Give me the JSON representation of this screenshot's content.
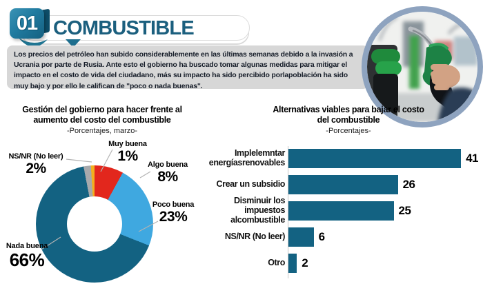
{
  "header": {
    "number": "01",
    "title": "COMBUSTIBLE"
  },
  "intro": {
    "text": "Los precios del petróleo han subido considerablemente en las últimas semanas debido a la invasión a Ucrania por parte de Rusia. Ante esto el gobierno ha buscado tomar algunas medidas para mitigar el impacto en el costo de vida del ciudadano, más su impacto ha sido percibido porlapoblación ha sido muy bajo y por ello le califican de \"poco o nada buenas\"."
  },
  "photo": {
    "description": "Mano sosteniendo boquilla verde de surtidor de combustible"
  },
  "colors": {
    "accent_teal": "#136282",
    "light_blue": "#3fa8e0",
    "red": "#e2271d",
    "yellow": "#f2b01e",
    "gray": "#a7a9ac",
    "title_blue": "#1b5f7e"
  },
  "chart_data": [
    {
      "type": "pie",
      "donut": true,
      "title": "Gestión del gobierno para hacer frente al aumento del costo del combustible",
      "subtitle": "-Porcentajes, marzo-",
      "legend_position": "callout-labels",
      "start_angle_deg": -10.8,
      "slices": [
        {
          "label": "NS/NR (No leer)",
          "value": 2,
          "pct": "2%",
          "color": "#a7a9ac"
        },
        {
          "label": "Muy buena",
          "value": 1,
          "pct": "1%",
          "color": "#f2b01e"
        },
        {
          "label": "Algo buena",
          "value": 8,
          "pct": "8%",
          "color": "#e2271d"
        },
        {
          "label": "Poco buena",
          "value": 23,
          "pct": "23%",
          "color": "#3fa8e0"
        },
        {
          "label": "Nada buena",
          "value": 66,
          "pct": "66%",
          "color": "#136282"
        }
      ]
    },
    {
      "type": "bar",
      "orientation": "horizontal",
      "title": "Alternativas viables para bajar el costo del combustible",
      "subtitle": "-Porcentajes-",
      "xlim": [
        0,
        45
      ],
      "grid": false,
      "bar_color": "#136282",
      "categories": [
        "Implelemntar energíasrenovables",
        "Crear un subsidio",
        "Disminuir los impuestos alcombustible",
        "NS/NR (No leer)",
        "Otro"
      ],
      "values": [
        41,
        26,
        25,
        6,
        2
      ]
    }
  ]
}
